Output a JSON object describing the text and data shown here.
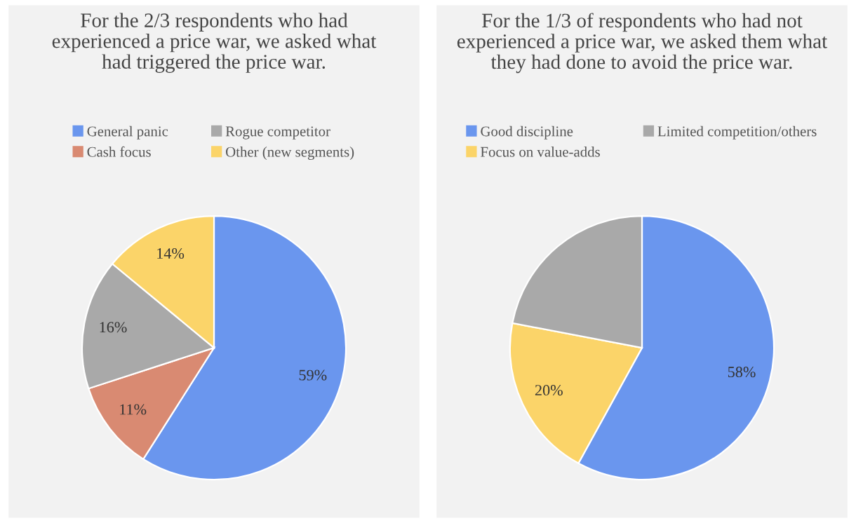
{
  "chart_data": [
    {
      "type": "pie",
      "title": "For the 2/3 respondents who had\nexperienced a price war, we asked what\nhad triggered the price war.",
      "categories": [
        "General panic",
        "Cash focus",
        "Rogue competitor",
        "Other (new segments)"
      ],
      "values": [
        59,
        11,
        16,
        14
      ],
      "colors": [
        "#6a96ee",
        "#d98a72",
        "#a9a9a9",
        "#fbd469"
      ],
      "value_labels": [
        "59%",
        "11%",
        "16%",
        "14%"
      ],
      "legend": "top"
    },
    {
      "type": "pie",
      "title": "For the 1/3 of respondents who had not\nexperienced a price war, we asked them what\nthey had done to avoid the price war.",
      "categories": [
        "Good discipline",
        "Focus on value-adds",
        "Limited competition/others"
      ],
      "values": [
        58,
        20,
        22
      ],
      "colors": [
        "#6a96ee",
        "#fbd469",
        "#a9a9a9"
      ],
      "value_labels": [
        "58%",
        "20%",
        null
      ],
      "legend": "top"
    }
  ]
}
